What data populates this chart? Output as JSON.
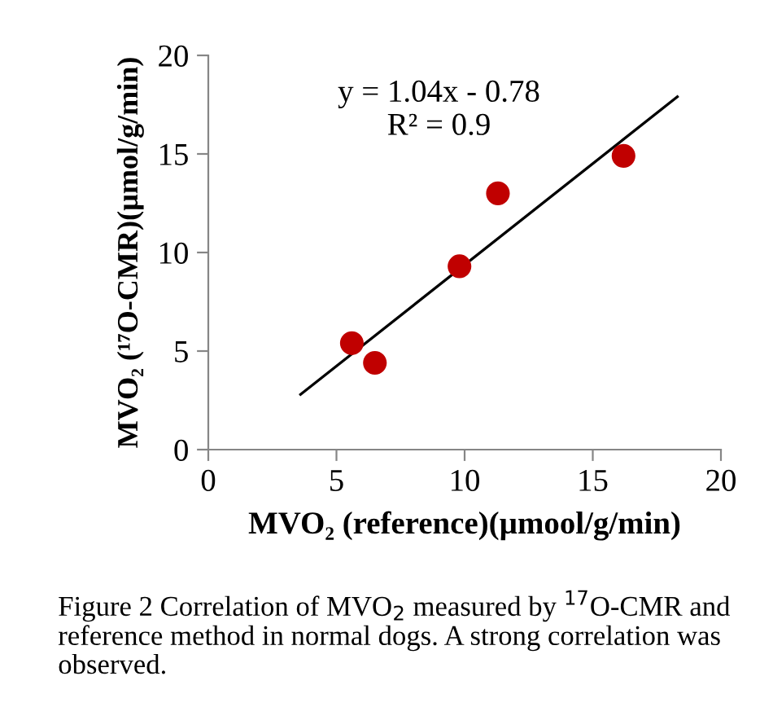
{
  "chart_data": {
    "type": "scatter",
    "xlabel": "MVO₂ (reference)(µmool/g/min)",
    "ylabel": "MVO₂ (¹⁷O-CMR)(µmol/g/min)",
    "series": [
      {
        "type": "scatter",
        "color": "#c00000",
        "x": [
          5.6,
          6.5,
          9.8,
          11.3,
          16.2
        ],
        "values": [
          5.4,
          4.4,
          9.3,
          13.0,
          14.9
        ],
        "marker": "circle"
      },
      {
        "type": "line",
        "color": "#000000",
        "x": [
          3.6,
          18.3
        ],
        "values": [
          2.8,
          17.9
        ],
        "marker": "none"
      }
    ],
    "xlim": [
      0,
      20
    ],
    "xticks": [
      0,
      5,
      10,
      15,
      20
    ],
    "ylim": [
      0,
      20
    ],
    "yticks": [
      0,
      5,
      10,
      15,
      20
    ],
    "grid": false,
    "legend": false,
    "annotations": [
      "y = 1.04x - 0.78\nR² = 0.9",
      "Figure 2 Correlation of MVO$_{2}$ measured by $^{17}$O-CMR and reference method in normal dogs. A strong correlation was observed."
    ]
  }
}
